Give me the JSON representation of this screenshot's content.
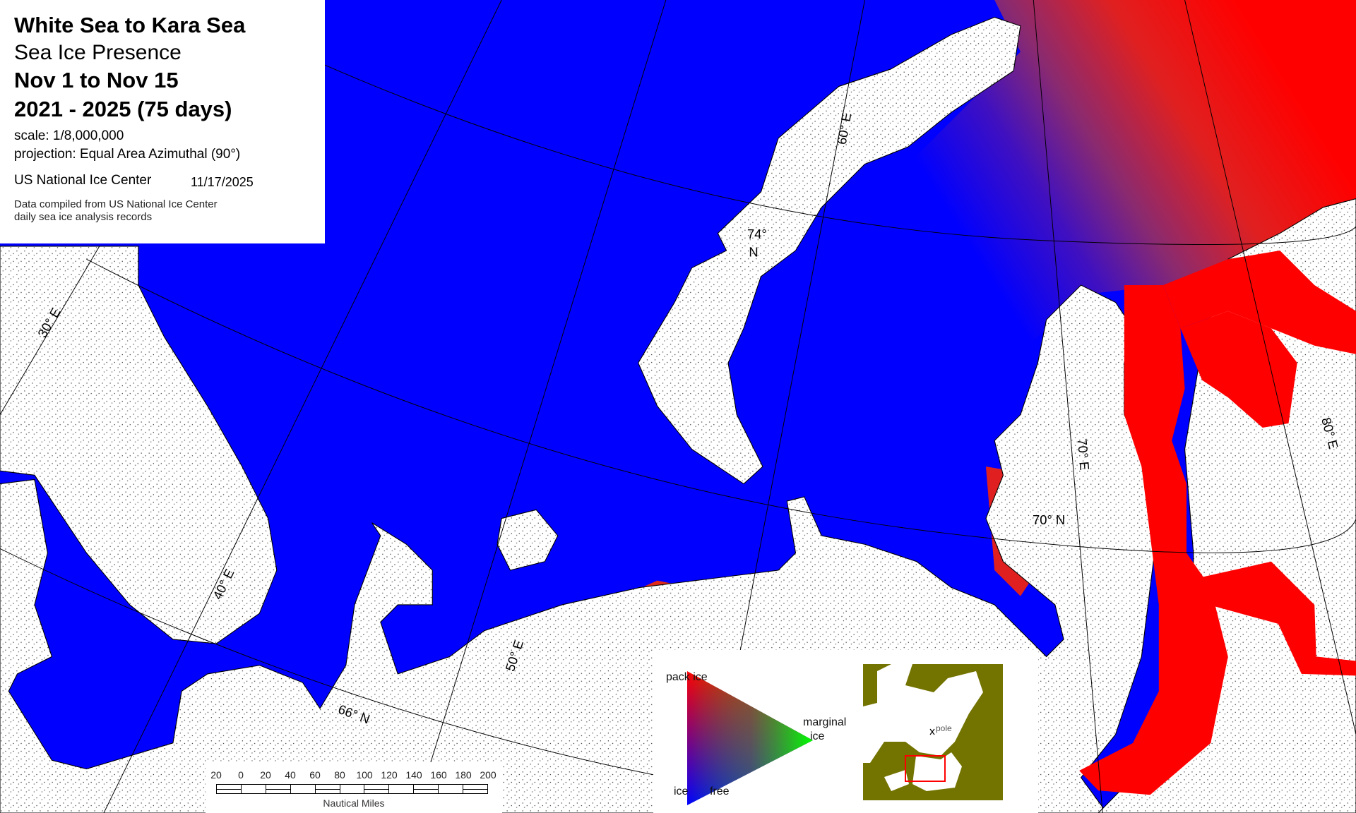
{
  "title": {
    "region": "White Sea to Kara Sea",
    "product": "Sea Ice Presence",
    "period": "Nov 1 to Nov 15",
    "years": "2021 - 2025   (75 days)",
    "scale": "scale: 1/8,000,000",
    "projection": "projection: Equal Area Azimuthal (90°)",
    "agency": "US National Ice Center",
    "date": "11/17/2025",
    "note_line1": "Data compiled from US National Ice Center",
    "note_line2": "daily sea ice analysis records"
  },
  "graticule_labels": {
    "lon_30": "30° E",
    "lon_40": "40° E",
    "lon_50": "50° E",
    "lon_60": "60° E",
    "lon_70": "70° E",
    "lon_80": "80° E",
    "lat_74_a": "74°",
    "lat_74_b": "N",
    "lat_70": "70° N",
    "lat_66": "66° N"
  },
  "scale_bar": {
    "ticks": [
      "20",
      "0",
      "20",
      "40",
      "60",
      "80",
      "100",
      "120",
      "140",
      "160",
      "180",
      "200"
    ],
    "unit": "Nautical Miles"
  },
  "legend": {
    "pack_ice": "pack  ice",
    "marginal": "marginal",
    "marginal_ice": "ice",
    "ice": "ice",
    "free": "free",
    "colors": {
      "pack_ice": "#ff0000",
      "marginal_ice": "#00ff00",
      "ice_free": "#0000ff"
    }
  },
  "inset": {
    "pole_label": "pole",
    "land_color": "#737300",
    "extent_box_color": "#ff0000"
  },
  "colors": {
    "ocean_ice_free": "#0000ff",
    "pack_ice": "#ff0000",
    "land": "#ffffff"
  }
}
